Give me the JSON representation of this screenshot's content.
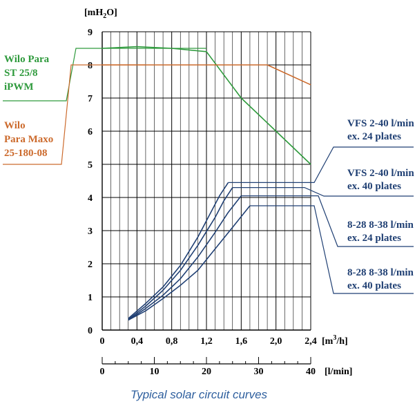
{
  "chart_data": {
    "type": "line",
    "title": "",
    "caption": "Typical solar circuit curves",
    "ylabel_base": "[mH",
    "ylabel_sub": "2",
    "ylabel_tail": "O]",
    "xlabel_top_base": "[m",
    "xlabel_top_sup": "3",
    "xlabel_top_tail": "/h]",
    "xlabel_bottom": "[l/min]",
    "xlim": [
      0,
      2.4
    ],
    "ylim": [
      0,
      9
    ],
    "x2lim": [
      0,
      40
    ],
    "xticks": [
      "0",
      "0,4",
      "0,8",
      "1,2",
      "1,6",
      "2,0",
      "2,4"
    ],
    "xticks_values": [
      0,
      0.4,
      0.8,
      1.2,
      1.6,
      2.0,
      2.4
    ],
    "yticks": [
      "0",
      "1",
      "2",
      "3",
      "4",
      "5",
      "6",
      "7",
      "8",
      "9"
    ],
    "x2ticks": [
      "0",
      "10",
      "20",
      "30",
      "40"
    ],
    "x2ticks_values": [
      0,
      10,
      20,
      30,
      40
    ],
    "grid": true,
    "series": [
      {
        "name_lines": [
          "Wilo Para",
          "ST 25/8",
          "iPWM"
        ],
        "color": "#2e9a3c",
        "label_x": 1.2,
        "label_y": 8.5,
        "x": [
          0,
          0.4,
          0.8,
          1.2,
          1.6,
          2.0,
          2.4
        ],
        "y": [
          8.5,
          8.55,
          8.5,
          8.4,
          7.0,
          6.0,
          5.0
        ]
      },
      {
        "name_lines": [
          "Wilo",
          "Para Maxo",
          "25-180-08"
        ],
        "color": "#cc6a2c",
        "label_x": 0.5,
        "label_y": 8.0,
        "x": [
          0,
          0.4,
          0.8,
          1.2,
          1.6,
          1.9,
          2.4
        ],
        "y": [
          8.0,
          8.0,
          8.0,
          8.0,
          8.0,
          8.0,
          7.4
        ]
      },
      {
        "name_lines": [
          "VFS 2-40 l/min",
          "ex. 24 plates"
        ],
        "color": "#1f3f73",
        "label_y": 4.45,
        "x": [
          0.3,
          0.5,
          0.7,
          0.9,
          1.1,
          1.25,
          1.35,
          1.45
        ],
        "y": [
          0.35,
          0.8,
          1.3,
          1.95,
          2.8,
          3.55,
          4.05,
          4.45
        ]
      },
      {
        "name_lines": [
          "VFS 2-40 l/min",
          "ex. 40 plates"
        ],
        "color": "#1f3f73",
        "label_y": 4.3,
        "x": [
          0.3,
          0.5,
          0.7,
          0.9,
          1.1,
          1.3,
          1.4,
          1.5
        ],
        "y": [
          0.32,
          0.72,
          1.2,
          1.8,
          2.55,
          3.4,
          3.9,
          4.3
        ]
      },
      {
        "name_lines": [
          "8-28 8-38 l/min",
          "ex. 24 plates"
        ],
        "color": "#1f3f73",
        "label_y": 4.05,
        "x": [
          0.3,
          0.5,
          0.7,
          0.9,
          1.1,
          1.3,
          1.45,
          1.6
        ],
        "y": [
          0.3,
          0.65,
          1.05,
          1.55,
          2.2,
          2.95,
          3.55,
          4.05
        ]
      },
      {
        "name_lines": [
          "8-28 8-38 l/min",
          "ex. 40 plates"
        ],
        "color": "#1f3f73",
        "label_y": 3.75,
        "x": [
          0.3,
          0.5,
          0.7,
          0.9,
          1.1,
          1.3,
          1.5,
          1.7
        ],
        "y": [
          0.3,
          0.58,
          0.95,
          1.35,
          1.8,
          2.45,
          3.1,
          3.75
        ]
      }
    ]
  }
}
